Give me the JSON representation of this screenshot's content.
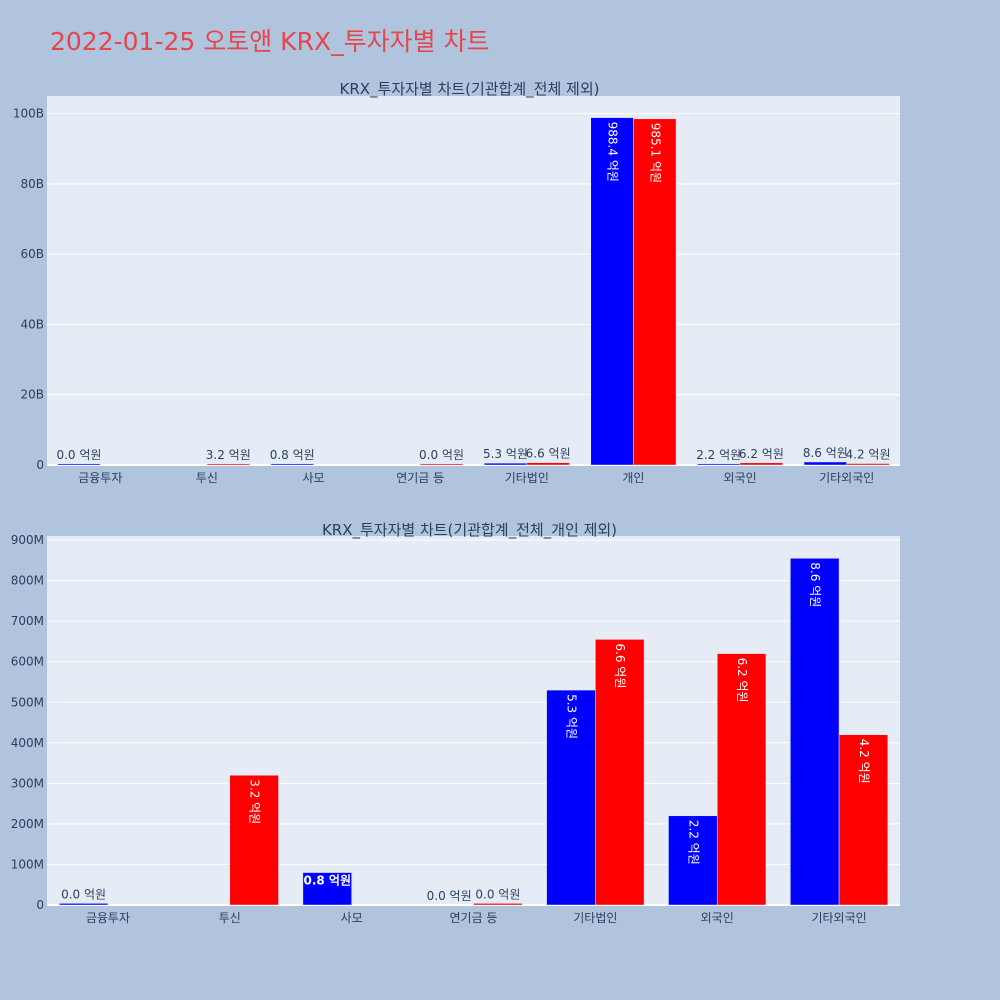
{
  "page_title": "2022-01-25 오토앤 KRX_투자자별 차트",
  "colors": {
    "buy": "#0000ff",
    "sell": "#ff0000",
    "page_bg": "#b0c4de",
    "plot_bg": "#e5ecf6",
    "title": "#e5464b"
  },
  "chart_data": [
    {
      "type": "bar",
      "title": "KRX_투자자별 차트(기관합계_전체 제외)",
      "categories": [
        "금융투자",
        "투신",
        "사모",
        "연기금 등",
        "기타법인",
        "개인",
        "외국인",
        "기타외국인"
      ],
      "series": [
        {
          "color": "#0000ff",
          "values": [
            4000000,
            0,
            80000000,
            0,
            530000000,
            98840000000,
            220000000,
            860000000
          ],
          "labels": [
            "0.0 억원",
            "",
            "0.8 억원",
            "",
            "5.3 억원",
            "988.4 억원",
            "2.2 억원",
            "8.6 억원"
          ]
        },
        {
          "color": "#ff0000",
          "values": [
            0,
            320000000,
            0,
            4000000,
            660000000,
            98510000000,
            620000000,
            420000000
          ],
          "labels": [
            "",
            "3.2 억원",
            "",
            "0.0 억원",
            "6.6 억원",
            "985.1 억원",
            "6.2 억원",
            "4.2 억원"
          ]
        }
      ],
      "y_ticks": [
        "0",
        "20B",
        "40B",
        "60B",
        "80B",
        "100B"
      ],
      "ylim": [
        0,
        105000000000
      ],
      "grid": true
    },
    {
      "type": "bar",
      "title": "KRX_투자자별 차트(기관합계_전체_개인 제외)",
      "categories": [
        "금융투자",
        "투신",
        "사모",
        "연기금 등",
        "기타법인",
        "외국인",
        "기타외국인"
      ],
      "series": [
        {
          "color": "#0000ff",
          "values": [
            4000000,
            0,
            80000000,
            0,
            530000000,
            220000000,
            855000000
          ],
          "labels": [
            "0.0 억원",
            "",
            "0.8 억원",
            "0.0 억원",
            "5.3 억원",
            "2.2 억원",
            "8.6 억원"
          ]
        },
        {
          "color": "#ff0000",
          "values": [
            0,
            320000000,
            0,
            4000000,
            655000000,
            620000000,
            420000000
          ],
          "labels": [
            "",
            "3.2 억원",
            "",
            "0.0 억원",
            "6.6 억원",
            "6.2 억원",
            "4.2 억원"
          ]
        }
      ],
      "y_ticks": [
        "0",
        "100M",
        "200M",
        "300M",
        "400M",
        "500M",
        "600M",
        "700M",
        "800M",
        "900M"
      ],
      "ylim": [
        0,
        910000000
      ],
      "grid": true
    }
  ]
}
